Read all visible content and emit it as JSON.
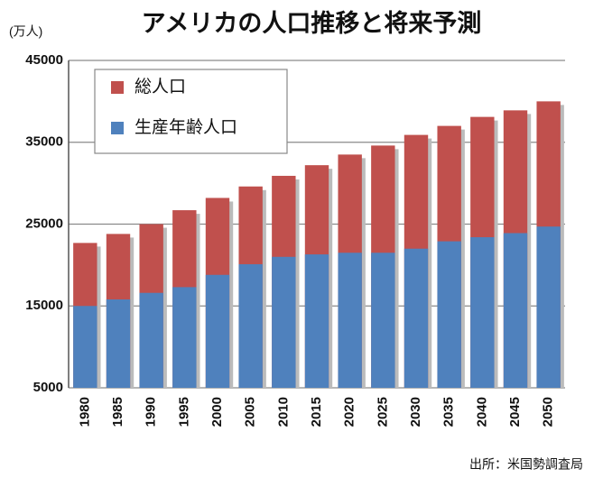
{
  "chart_data": {
    "type": "bar",
    "title": "アメリカの人口推移と将来予測",
    "y_axis_label": "(万人)",
    "source": "出所：米国勢調査局",
    "categories": [
      "1980",
      "1985",
      "1990",
      "1995",
      "2000",
      "2005",
      "2010",
      "2015",
      "2020",
      "2025",
      "2030",
      "2035",
      "2040",
      "2045",
      "2050"
    ],
    "series": [
      {
        "name": "総人口",
        "color": "#c0504d",
        "values": [
          22700,
          23800,
          25000,
          26700,
          28200,
          29600,
          30900,
          32200,
          33500,
          34600,
          35900,
          37000,
          38100,
          38900,
          40000
        ]
      },
      {
        "name": "生産年齢人口",
        "color": "#4f81bd",
        "values": [
          15000,
          15800,
          16600,
          17300,
          18800,
          20100,
          21000,
          21300,
          21500,
          21500,
          22000,
          22900,
          23400,
          23900,
          24700
        ]
      }
    ],
    "ylim": [
      5000,
      45000
    ],
    "yticks": [
      5000,
      15000,
      25000,
      35000,
      45000
    ],
    "grid": true,
    "legend": "upper left"
  }
}
